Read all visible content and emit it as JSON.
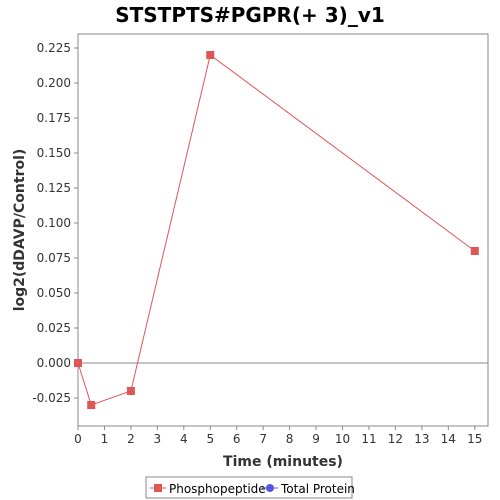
{
  "chart_data": {
    "type": "line",
    "title": "STSTPTS#PGPR(+ 3)_v1",
    "xlabel": "Time (minutes)",
    "ylabel": "log2(dDAVP/Control)",
    "xlim": [
      0,
      15.5
    ],
    "ylim": [
      -0.045,
      0.235
    ],
    "x_ticks": [
      0,
      1,
      2,
      3,
      4,
      5,
      6,
      7,
      8,
      9,
      10,
      11,
      12,
      13,
      14,
      15
    ],
    "y_ticks": [
      -0.025,
      0,
      0.025,
      0.05,
      0.075,
      0.1,
      0.125,
      0.15,
      0.175,
      0.2,
      0.225
    ],
    "y_tick_labels": [
      "-0.025",
      "0.000",
      "0.025",
      "0.050",
      "0.075",
      "0.100",
      "0.125",
      "0.150",
      "0.175",
      "0.200",
      "0.225"
    ],
    "zero_line": true,
    "grid": false,
    "legend_position": "bottom",
    "series": [
      {
        "name": "Phosphopeptide",
        "color": "#e05555",
        "marker": "square",
        "points": [
          {
            "x": 0,
            "y": 0.0
          },
          {
            "x": 0.5,
            "y": -0.03
          },
          {
            "x": 2,
            "y": -0.02
          },
          {
            "x": 5,
            "y": 0.22
          },
          {
            "x": 15,
            "y": 0.08
          }
        ]
      },
      {
        "name": "Total Protein",
        "color": "#5555e0",
        "marker": "circle",
        "points": []
      }
    ]
  }
}
